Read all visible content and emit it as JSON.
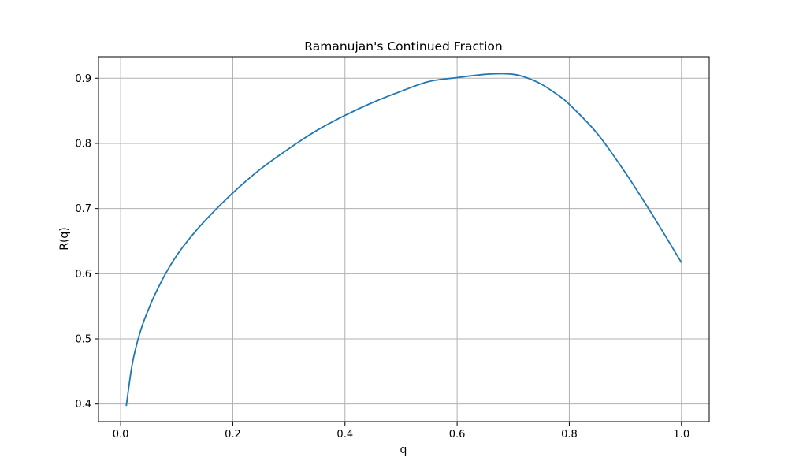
{
  "chart_data": {
    "type": "line",
    "title": "Ramanujan's Continued Fraction",
    "xlabel": "q",
    "ylabel": "R(q)",
    "xlim": [
      -0.0395,
      1.0495
    ],
    "ylim": [
      0.373,
      0.933
    ],
    "xticks": [
      0.0,
      0.2,
      0.4,
      0.6,
      0.8,
      1.0
    ],
    "xtick_labels": [
      "0.0",
      "0.2",
      "0.4",
      "0.6",
      "0.8",
      "1.0"
    ],
    "yticks": [
      0.4,
      0.5,
      0.6,
      0.7,
      0.8,
      0.9
    ],
    "ytick_labels": [
      "0.4",
      "0.5",
      "0.6",
      "0.7",
      "0.8",
      "0.9"
    ],
    "grid": true,
    "series": [
      {
        "color": "#1f77b4",
        "x": [
          0.01,
          0.02,
          0.03,
          0.04,
          0.05,
          0.06,
          0.08,
          0.1,
          0.12,
          0.15,
          0.2,
          0.25,
          0.3,
          0.35,
          0.4,
          0.45,
          0.5,
          0.55,
          0.6,
          0.65,
          0.68,
          0.7,
          0.72,
          0.75,
          0.78,
          0.8,
          0.85,
          0.9,
          0.95,
          1.0
        ],
        "y": [
          0.397,
          0.458,
          0.496,
          0.524,
          0.546,
          0.566,
          0.6,
          0.628,
          0.651,
          0.681,
          0.724,
          0.761,
          0.792,
          0.82,
          0.843,
          0.863,
          0.88,
          0.895,
          0.901,
          0.906,
          0.907,
          0.906,
          0.902,
          0.891,
          0.874,
          0.86,
          0.815,
          0.755,
          0.688,
          0.617
        ]
      }
    ]
  }
}
